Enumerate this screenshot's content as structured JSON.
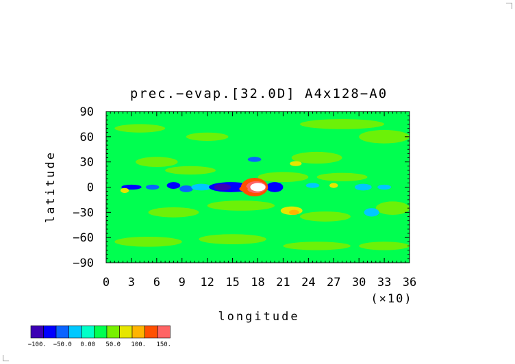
{
  "chart_data": {
    "type": "heatmap",
    "title": "prec.−evap.[32.0D]  A4x128−A0",
    "xlabel": "longitude",
    "ylabel": "latitude",
    "x_scale_note": "(×10)",
    "xlim": [
      0,
      36
    ],
    "ylim": [
      -90,
      90
    ],
    "x_ticks": [
      "0",
      "3",
      "6",
      "9",
      "12",
      "15",
      "18",
      "21",
      "24",
      "27",
      "30",
      "33",
      "36"
    ],
    "y_ticks": [
      "90",
      "60",
      "30",
      "0",
      "−30",
      "−60",
      "−90"
    ],
    "grid": false,
    "legend": {
      "position": "bottom-left",
      "labels": [
        "−100.",
        "−50.0",
        "0.00",
        "50.0",
        "100.",
        "150."
      ],
      "colors": [
        "#3c00b4",
        "#0000ff",
        "#0a64ff",
        "#00c8ff",
        "#00ffc8",
        "#00ff50",
        "#78f000",
        "#e6e600",
        "#ffb400",
        "#ff5000",
        "#ff6464"
      ]
    },
    "background_level": 5,
    "features": [
      {
        "lon": 3.0,
        "lat": 0,
        "rx": 1.2,
        "ry": 3,
        "level": 1
      },
      {
        "lon": 5.5,
        "lat": 0,
        "rx": 0.8,
        "ry": 3,
        "level": 2
      },
      {
        "lon": 8.0,
        "lat": 2,
        "rx": 0.8,
        "ry": 4,
        "level": 1
      },
      {
        "lon": 9.5,
        "lat": -2,
        "rx": 0.8,
        "ry": 4,
        "level": 2
      },
      {
        "lon": 11.3,
        "lat": 0,
        "rx": 1.2,
        "ry": 4,
        "level": 3
      },
      {
        "lon": 14.8,
        "lat": 0,
        "rx": 2.6,
        "ry": 6,
        "level": 1
      },
      {
        "lon": 13.8,
        "lat": 0,
        "rx": 1.0,
        "ry": 4,
        "level": 0
      },
      {
        "lon": 20.0,
        "lat": 0,
        "rx": 1.0,
        "ry": 6,
        "level": 1
      },
      {
        "lon": 17.6,
        "lat": 0,
        "rx": 1.6,
        "ry": 11,
        "level": 9
      },
      {
        "lon": 17.8,
        "lat": 0,
        "rx": 1.2,
        "ry": 7,
        "level": 10
      },
      {
        "lon": 18.0,
        "lat": 0,
        "rx": 0.9,
        "ry": 5,
        "level": 11
      },
      {
        "lon": 16.3,
        "lat": -2,
        "rx": 0.5,
        "ry": 3,
        "level": 9
      },
      {
        "lon": 22.0,
        "lat": -28,
        "rx": 1.3,
        "ry": 5,
        "level": 7
      },
      {
        "lon": 22.3,
        "lat": -30,
        "rx": 0.6,
        "ry": 3,
        "level": 8
      },
      {
        "lon": 17.6,
        "lat": 33,
        "rx": 0.8,
        "ry": 3,
        "level": 2
      },
      {
        "lon": 22.5,
        "lat": 28,
        "rx": 0.7,
        "ry": 3,
        "level": 7
      },
      {
        "lon": 27.0,
        "lat": 2,
        "rx": 0.5,
        "ry": 3,
        "level": 7
      },
      {
        "lon": 2.2,
        "lat": -4,
        "rx": 0.5,
        "ry": 3,
        "level": 7
      },
      {
        "lon": 24.5,
        "lat": 2,
        "rx": 0.8,
        "ry": 3,
        "level": 3
      },
      {
        "lon": 30.5,
        "lat": 0,
        "rx": 1.0,
        "ry": 4,
        "level": 3
      },
      {
        "lon": 33.0,
        "lat": 0,
        "rx": 0.8,
        "ry": 3,
        "level": 3
      },
      {
        "lon": 31.5,
        "lat": -30,
        "rx": 0.9,
        "ry": 5,
        "level": 3
      }
    ],
    "green_patches": [
      {
        "lon": 4,
        "lat": 70,
        "rx": 3,
        "ry": 5
      },
      {
        "lon": 12,
        "lat": 60,
        "rx": 2.5,
        "ry": 5
      },
      {
        "lon": 28,
        "lat": 75,
        "rx": 5,
        "ry": 6
      },
      {
        "lon": 33,
        "lat": 60,
        "rx": 3,
        "ry": 8
      },
      {
        "lon": 6,
        "lat": 30,
        "rx": 2.5,
        "ry": 6
      },
      {
        "lon": 25,
        "lat": 35,
        "rx": 3,
        "ry": 7
      },
      {
        "lon": 10,
        "lat": 20,
        "rx": 3,
        "ry": 5
      },
      {
        "lon": 8,
        "lat": -30,
        "rx": 3,
        "ry": 6
      },
      {
        "lon": 16,
        "lat": -22,
        "rx": 4,
        "ry": 6
      },
      {
        "lon": 26,
        "lat": -35,
        "rx": 3,
        "ry": 6
      },
      {
        "lon": 34,
        "lat": -25,
        "rx": 2,
        "ry": 8
      },
      {
        "lon": 5,
        "lat": -65,
        "rx": 4,
        "ry": 6
      },
      {
        "lon": 15,
        "lat": -62,
        "rx": 4,
        "ry": 6
      },
      {
        "lon": 25,
        "lat": -70,
        "rx": 4,
        "ry": 5
      },
      {
        "lon": 33,
        "lat": -70,
        "rx": 3,
        "ry": 5
      },
      {
        "lon": 21,
        "lat": 12,
        "rx": 3,
        "ry": 6
      },
      {
        "lon": 28,
        "lat": 12,
        "rx": 3,
        "ry": 5
      }
    ]
  }
}
